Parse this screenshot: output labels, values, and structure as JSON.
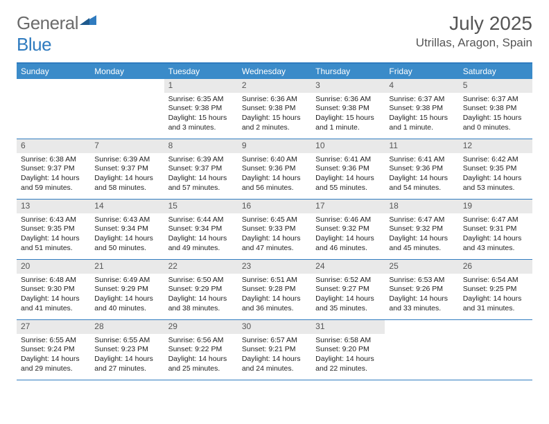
{
  "logo": {
    "text_general": "General",
    "text_blue": "Blue"
  },
  "title": "July 2025",
  "location": "Utrillas, Aragon, Spain",
  "colors": {
    "header_bar": "#3b8bc9",
    "accent_border": "#2f7bbf",
    "daynum_bg": "#e9e9e9",
    "text": "#222222",
    "muted": "#555555",
    "logo_gray": "#6b6b6b",
    "logo_blue": "#2f7bbf",
    "background": "#ffffff"
  },
  "typography": {
    "title_fontsize": 28,
    "location_fontsize": 17,
    "dow_fontsize": 12,
    "cell_fontsize": 10.5,
    "logo_fontsize": 26
  },
  "days_of_week": [
    "Sunday",
    "Monday",
    "Tuesday",
    "Wednesday",
    "Thursday",
    "Friday",
    "Saturday"
  ],
  "weeks": [
    [
      {
        "empty": true
      },
      {
        "empty": true
      },
      {
        "day": "1",
        "sunrise": "Sunrise: 6:35 AM",
        "sunset": "Sunset: 9:38 PM",
        "daylight": "Daylight: 15 hours and 3 minutes."
      },
      {
        "day": "2",
        "sunrise": "Sunrise: 6:36 AM",
        "sunset": "Sunset: 9:38 PM",
        "daylight": "Daylight: 15 hours and 2 minutes."
      },
      {
        "day": "3",
        "sunrise": "Sunrise: 6:36 AM",
        "sunset": "Sunset: 9:38 PM",
        "daylight": "Daylight: 15 hours and 1 minute."
      },
      {
        "day": "4",
        "sunrise": "Sunrise: 6:37 AM",
        "sunset": "Sunset: 9:38 PM",
        "daylight": "Daylight: 15 hours and 1 minute."
      },
      {
        "day": "5",
        "sunrise": "Sunrise: 6:37 AM",
        "sunset": "Sunset: 9:38 PM",
        "daylight": "Daylight: 15 hours and 0 minutes."
      }
    ],
    [
      {
        "day": "6",
        "sunrise": "Sunrise: 6:38 AM",
        "sunset": "Sunset: 9:37 PM",
        "daylight": "Daylight: 14 hours and 59 minutes."
      },
      {
        "day": "7",
        "sunrise": "Sunrise: 6:39 AM",
        "sunset": "Sunset: 9:37 PM",
        "daylight": "Daylight: 14 hours and 58 minutes."
      },
      {
        "day": "8",
        "sunrise": "Sunrise: 6:39 AM",
        "sunset": "Sunset: 9:37 PM",
        "daylight": "Daylight: 14 hours and 57 minutes."
      },
      {
        "day": "9",
        "sunrise": "Sunrise: 6:40 AM",
        "sunset": "Sunset: 9:36 PM",
        "daylight": "Daylight: 14 hours and 56 minutes."
      },
      {
        "day": "10",
        "sunrise": "Sunrise: 6:41 AM",
        "sunset": "Sunset: 9:36 PM",
        "daylight": "Daylight: 14 hours and 55 minutes."
      },
      {
        "day": "11",
        "sunrise": "Sunrise: 6:41 AM",
        "sunset": "Sunset: 9:36 PM",
        "daylight": "Daylight: 14 hours and 54 minutes."
      },
      {
        "day": "12",
        "sunrise": "Sunrise: 6:42 AM",
        "sunset": "Sunset: 9:35 PM",
        "daylight": "Daylight: 14 hours and 53 minutes."
      }
    ],
    [
      {
        "day": "13",
        "sunrise": "Sunrise: 6:43 AM",
        "sunset": "Sunset: 9:35 PM",
        "daylight": "Daylight: 14 hours and 51 minutes."
      },
      {
        "day": "14",
        "sunrise": "Sunrise: 6:43 AM",
        "sunset": "Sunset: 9:34 PM",
        "daylight": "Daylight: 14 hours and 50 minutes."
      },
      {
        "day": "15",
        "sunrise": "Sunrise: 6:44 AM",
        "sunset": "Sunset: 9:34 PM",
        "daylight": "Daylight: 14 hours and 49 minutes."
      },
      {
        "day": "16",
        "sunrise": "Sunrise: 6:45 AM",
        "sunset": "Sunset: 9:33 PM",
        "daylight": "Daylight: 14 hours and 47 minutes."
      },
      {
        "day": "17",
        "sunrise": "Sunrise: 6:46 AM",
        "sunset": "Sunset: 9:32 PM",
        "daylight": "Daylight: 14 hours and 46 minutes."
      },
      {
        "day": "18",
        "sunrise": "Sunrise: 6:47 AM",
        "sunset": "Sunset: 9:32 PM",
        "daylight": "Daylight: 14 hours and 45 minutes."
      },
      {
        "day": "19",
        "sunrise": "Sunrise: 6:47 AM",
        "sunset": "Sunset: 9:31 PM",
        "daylight": "Daylight: 14 hours and 43 minutes."
      }
    ],
    [
      {
        "day": "20",
        "sunrise": "Sunrise: 6:48 AM",
        "sunset": "Sunset: 9:30 PM",
        "daylight": "Daylight: 14 hours and 41 minutes."
      },
      {
        "day": "21",
        "sunrise": "Sunrise: 6:49 AM",
        "sunset": "Sunset: 9:29 PM",
        "daylight": "Daylight: 14 hours and 40 minutes."
      },
      {
        "day": "22",
        "sunrise": "Sunrise: 6:50 AM",
        "sunset": "Sunset: 9:29 PM",
        "daylight": "Daylight: 14 hours and 38 minutes."
      },
      {
        "day": "23",
        "sunrise": "Sunrise: 6:51 AM",
        "sunset": "Sunset: 9:28 PM",
        "daylight": "Daylight: 14 hours and 36 minutes."
      },
      {
        "day": "24",
        "sunrise": "Sunrise: 6:52 AM",
        "sunset": "Sunset: 9:27 PM",
        "daylight": "Daylight: 14 hours and 35 minutes."
      },
      {
        "day": "25",
        "sunrise": "Sunrise: 6:53 AM",
        "sunset": "Sunset: 9:26 PM",
        "daylight": "Daylight: 14 hours and 33 minutes."
      },
      {
        "day": "26",
        "sunrise": "Sunrise: 6:54 AM",
        "sunset": "Sunset: 9:25 PM",
        "daylight": "Daylight: 14 hours and 31 minutes."
      }
    ],
    [
      {
        "day": "27",
        "sunrise": "Sunrise: 6:55 AM",
        "sunset": "Sunset: 9:24 PM",
        "daylight": "Daylight: 14 hours and 29 minutes."
      },
      {
        "day": "28",
        "sunrise": "Sunrise: 6:55 AM",
        "sunset": "Sunset: 9:23 PM",
        "daylight": "Daylight: 14 hours and 27 minutes."
      },
      {
        "day": "29",
        "sunrise": "Sunrise: 6:56 AM",
        "sunset": "Sunset: 9:22 PM",
        "daylight": "Daylight: 14 hours and 25 minutes."
      },
      {
        "day": "30",
        "sunrise": "Sunrise: 6:57 AM",
        "sunset": "Sunset: 9:21 PM",
        "daylight": "Daylight: 14 hours and 24 minutes."
      },
      {
        "day": "31",
        "sunrise": "Sunrise: 6:58 AM",
        "sunset": "Sunset: 9:20 PM",
        "daylight": "Daylight: 14 hours and 22 minutes."
      },
      {
        "empty": true
      },
      {
        "empty": true
      }
    ]
  ]
}
